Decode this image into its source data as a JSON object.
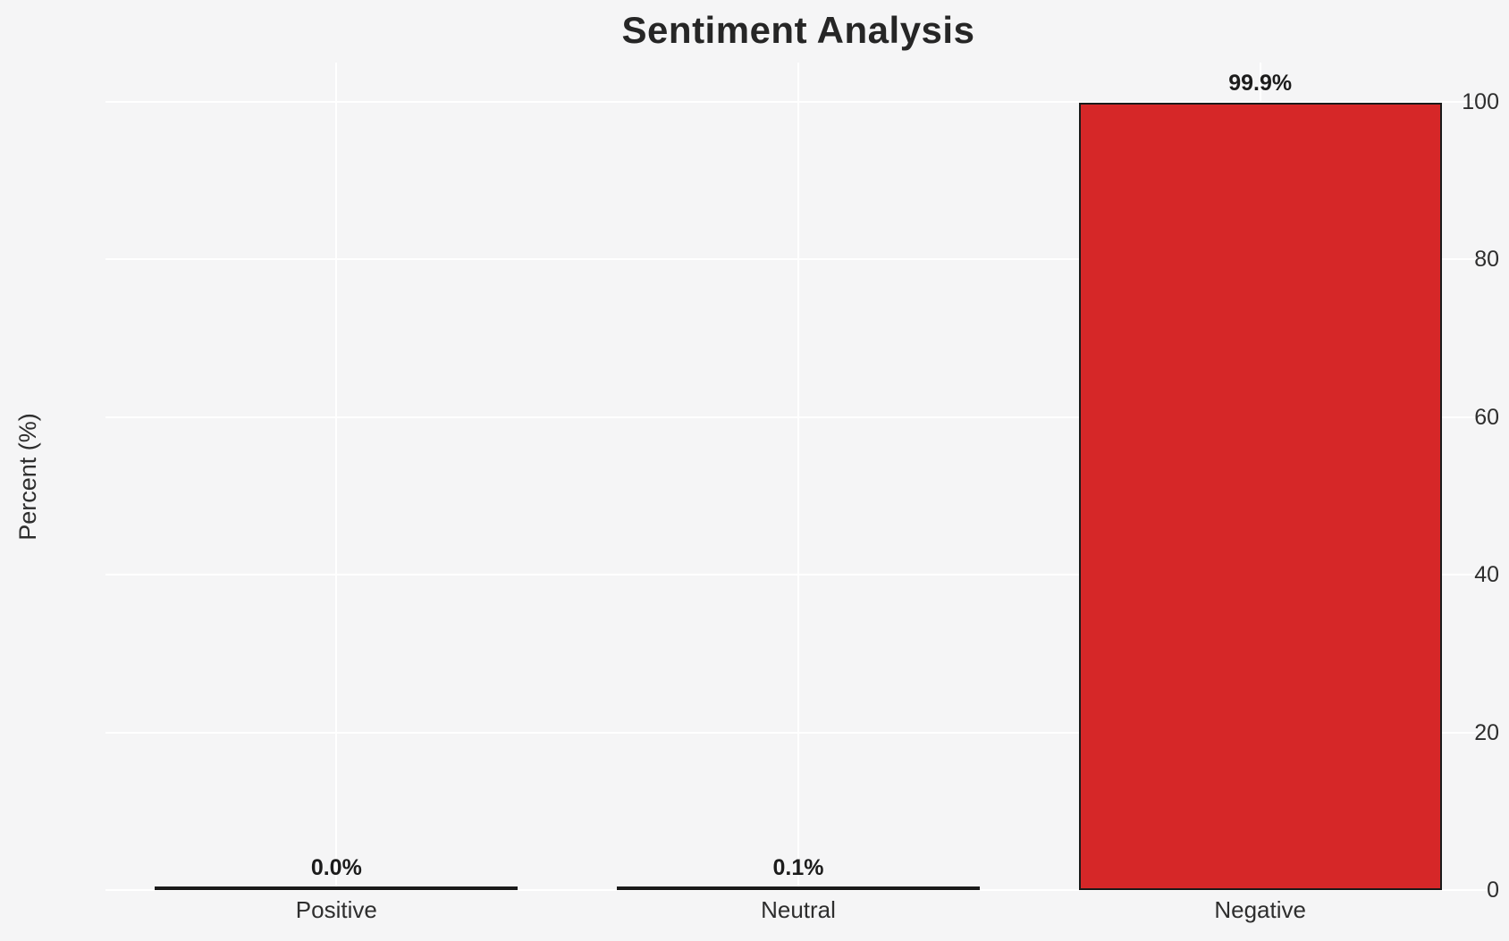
{
  "chart_data": {
    "type": "bar",
    "title": "Sentiment Analysis",
    "xlabel": "",
    "ylabel": "Percent (%)",
    "categories": [
      "Positive",
      "Neutral",
      "Negative"
    ],
    "values": [
      0.0,
      0.1,
      99.9
    ],
    "value_labels": [
      "0.0%",
      "0.1%",
      "99.9%"
    ],
    "yticks": [
      0,
      20,
      40,
      60,
      80,
      100
    ],
    "ylim": [
      0,
      105
    ],
    "grid": true,
    "legend_position": "none",
    "colors": {
      "background": "#f5f5f6",
      "gridline": "#ffffff",
      "bar_fill": "#d62728",
      "bar_edge": "#1a1a1a",
      "title_text": "#262626",
      "tick_text": "#2e2e2e",
      "value_label_text": "#1c1c1c"
    }
  }
}
